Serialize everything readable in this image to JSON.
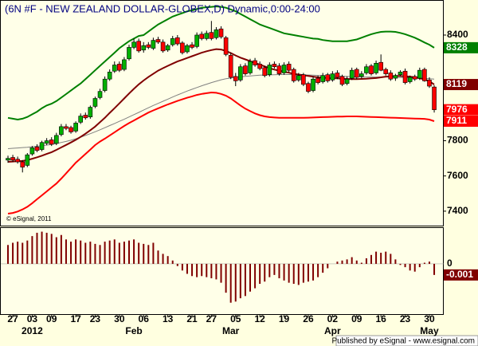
{
  "chart_data": {
    "type": "candlestick",
    "title": "(6N #F - NEW ZEALAND DOLLAR-GLOBEX,D) Dynamic,0:00-24:00",
    "watermark": "© eSignal, 2011",
    "footer": "Published by eSignal - www.esignal.com",
    "categories": [
      null,
      "27",
      null,
      null,
      null,
      "03",
      null,
      null,
      null,
      "09",
      null,
      null,
      null,
      null,
      "17",
      null,
      null,
      null,
      "23",
      null,
      null,
      null,
      null,
      "30",
      null,
      null,
      null,
      null,
      "06",
      null,
      null,
      null,
      null,
      "13",
      null,
      null,
      null,
      null,
      "21",
      null,
      null,
      null,
      "27",
      null,
      null,
      null,
      null,
      "05",
      null,
      null,
      null,
      null,
      "12",
      null,
      null,
      null,
      null,
      "19",
      null,
      null,
      null,
      null,
      "26",
      null,
      null,
      null,
      null,
      "02",
      null,
      null,
      null,
      null,
      "09",
      null,
      null,
      null,
      null,
      "16",
      null,
      null,
      null,
      null,
      "23",
      null,
      null,
      null,
      null,
      "30",
      null
    ],
    "month_labels": [
      null,
      null,
      null,
      null,
      null,
      "2012",
      null,
      null,
      null,
      null,
      null,
      null,
      null,
      null,
      null,
      null,
      null,
      null,
      null,
      null,
      null,
      null,
      null,
      null,
      null,
      null,
      "Feb",
      null,
      null,
      null,
      null,
      null,
      null,
      null,
      null,
      null,
      null,
      null,
      null,
      null,
      null,
      null,
      null,
      null,
      null,
      null,
      "Mar",
      null,
      null,
      null,
      null,
      null,
      null,
      null,
      null,
      null,
      null,
      null,
      null,
      null,
      null,
      null,
      null,
      null,
      null,
      null,
      null,
      "Apr",
      null,
      null,
      null,
      null,
      null,
      null,
      null,
      null,
      null,
      null,
      null,
      null,
      null,
      null,
      null,
      null,
      null,
      null,
      null,
      "May"
    ],
    "candles": {
      "open": [
        7690,
        7705,
        7695,
        7680,
        7660,
        7725,
        7765,
        7750,
        7785,
        7805,
        7785,
        7835,
        7880,
        7875,
        7855,
        7905,
        7945,
        7935,
        7995,
        8045,
        8085,
        8150,
        8195,
        8235,
        8205,
        8265,
        8330,
        8365,
        8315,
        8345,
        8325,
        8375,
        8360,
        8315,
        8345,
        8385,
        8355,
        8305,
        8345,
        8335,
        8405,
        8380,
        8415,
        8385,
        8435,
        8385,
        8285,
        8165,
        8145,
        8225,
        8185,
        8255,
        8235,
        8215,
        8175,
        8235,
        8225,
        8185,
        8235,
        8205,
        8145,
        8175,
        8125,
        8085,
        8155,
        8135,
        8175,
        8145,
        8185,
        8165,
        8125,
        8155,
        8205,
        8165,
        8185,
        8225,
        8185,
        8245,
        8205,
        8185,
        8155,
        8175,
        8195,
        8135,
        8165,
        8155,
        8205,
        8145,
        8105
      ],
      "high": [
        7715,
        7720,
        7710,
        7690,
        7730,
        7770,
        7780,
        7800,
        7815,
        7820,
        7845,
        7895,
        7895,
        7885,
        7910,
        7955,
        7960,
        8000,
        8050,
        8095,
        8165,
        8205,
        8250,
        8250,
        8275,
        8345,
        8380,
        8380,
        8360,
        8360,
        8385,
        8390,
        8375,
        8350,
        8395,
        8400,
        8365,
        8350,
        8360,
        8415,
        8420,
        8425,
        8480,
        8445,
        8450,
        8395,
        8300,
        8185,
        8235,
        8240,
        8265,
        8270,
        8250,
        8225,
        8245,
        8250,
        8240,
        8245,
        8250,
        8215,
        8185,
        8185,
        8135,
        8165,
        8170,
        8185,
        8185,
        8195,
        8200,
        8175,
        8165,
        8215,
        8215,
        8195,
        8235,
        8235,
        8255,
        8290,
        8215,
        8200,
        8180,
        8200,
        8210,
        8170,
        8175,
        8215,
        8215,
        8160,
        8115
      ],
      "low": [
        7675,
        7680,
        7670,
        7620,
        7650,
        7715,
        7735,
        7740,
        7775,
        7770,
        7775,
        7825,
        7860,
        7840,
        7845,
        7895,
        7920,
        7925,
        7985,
        8035,
        8075,
        8140,
        8185,
        8190,
        8195,
        8255,
        8320,
        8300,
        8300,
        8320,
        8315,
        8350,
        8300,
        8305,
        8335,
        8340,
        8290,
        8295,
        8320,
        8325,
        8370,
        8370,
        8370,
        8375,
        8380,
        8280,
        8150,
        8110,
        8135,
        8170,
        8175,
        8220,
        8200,
        8160,
        8165,
        8210,
        8170,
        8175,
        8190,
        8130,
        8135,
        8110,
        8070,
        8075,
        8120,
        8125,
        8130,
        8135,
        8150,
        8110,
        8115,
        8145,
        8150,
        8155,
        8175,
        8170,
        8175,
        8195,
        8170,
        8140,
        8140,
        8165,
        8120,
        8125,
        8140,
        8145,
        8135,
        8100,
        7960
      ],
      "close": [
        7700,
        7690,
        7680,
        7650,
        7720,
        7760,
        7745,
        7790,
        7800,
        7780,
        7830,
        7880,
        7870,
        7850,
        7900,
        7940,
        7930,
        7990,
        8040,
        8080,
        8150,
        8190,
        8230,
        8200,
        8260,
        8330,
        8360,
        8310,
        8340,
        8330,
        8370,
        8360,
        8310,
        8340,
        8380,
        8350,
        8300,
        8340,
        8330,
        8400,
        8380,
        8410,
        8380,
        8430,
        8390,
        8290,
        8160,
        8140,
        8220,
        8180,
        8250,
        8230,
        8210,
        8170,
        8230,
        8220,
        8180,
        8230,
        8200,
        8140,
        8170,
        8120,
        8080,
        8150,
        8130,
        8170,
        8140,
        8180,
        8160,
        8120,
        8150,
        8200,
        8160,
        8180,
        8220,
        8180,
        8240,
        8200,
        8180,
        8150,
        8170,
        8190,
        8130,
        8160,
        8150,
        8200,
        8140,
        8110,
        7976
      ]
    },
    "up_color": "#00b000",
    "down_color": "#ff0000",
    "lines": [
      {
        "color": "#008000",
        "badge": true,
        "values": [
          7930,
          7925,
          7920,
          7925,
          7935,
          7950,
          7965,
          7985,
          8000,
          8010,
          8025,
          8045,
          8065,
          8085,
          8105,
          8125,
          8150,
          8175,
          8200,
          8225,
          8250,
          8275,
          8300,
          8325,
          8345,
          8365,
          8380,
          8395,
          8400,
          8420,
          8440,
          8460,
          8475,
          8490,
          8505,
          8515,
          8525,
          8535,
          8540,
          8548,
          8555,
          8558,
          8560,
          8563,
          8560,
          8555,
          8545,
          8535,
          8520,
          8505,
          8490,
          8475,
          8460,
          8450,
          8440,
          8430,
          8420,
          8410,
          8405,
          8400,
          8395,
          8390,
          8385,
          8380,
          8378,
          8372,
          8368,
          8365,
          8365,
          8365,
          8365,
          8370,
          8375,
          8385,
          8395,
          8405,
          8412,
          8418,
          8420,
          8420,
          8418,
          8412,
          8405,
          8395,
          8385,
          8372,
          8358,
          8345,
          8328
        ]
      },
      {
        "color": "#808080",
        "badge": false,
        "values": [
          7755,
          7757,
          7759,
          7761,
          7763,
          7766,
          7769,
          7772,
          7775,
          7779,
          7784,
          7790,
          7796,
          7803,
          7811,
          7820,
          7830,
          7840,
          7851,
          7862,
          7874,
          7886,
          7898,
          7910,
          7922,
          7935,
          7948,
          7961,
          7974,
          7987,
          8000,
          8012,
          8024,
          8036,
          8048,
          8060,
          8071,
          8082,
          8092,
          8102,
          8112,
          8121,
          8130,
          8138,
          8146,
          8152,
          8156,
          8160,
          8163,
          8166,
          8168,
          8170,
          8172,
          8173,
          8174,
          8175,
          8176,
          8176,
          8176,
          8176,
          8175,
          8174,
          8173,
          8172,
          8171,
          8170,
          8169,
          8168,
          8167,
          8166,
          8165,
          8164,
          8163,
          8162,
          8162,
          8162,
          8162,
          8162,
          8162,
          8161,
          8160,
          8159,
          8158,
          8157,
          8156,
          8155,
          8154,
          8152,
          8150
        ]
      },
      {
        "color": "#800000",
        "badge": true,
        "values": [
          7680,
          7682,
          7684,
          7685,
          7690,
          7698,
          7706,
          7715,
          7725,
          7735,
          7748,
          7762,
          7776,
          7790,
          7805,
          7822,
          7840,
          7860,
          7880,
          7905,
          7930,
          7958,
          7985,
          8012,
          8040,
          8068,
          8095,
          8120,
          8142,
          8162,
          8180,
          8198,
          8212,
          8225,
          8238,
          8250,
          8260,
          8270,
          8280,
          8290,
          8300,
          8308,
          8315,
          8320,
          8318,
          8310,
          8298,
          8284,
          8272,
          8262,
          8252,
          8242,
          8232,
          8222,
          8212,
          8204,
          8198,
          8192,
          8186,
          8180,
          8176,
          8172,
          8168,
          8164,
          8160,
          8158,
          8156,
          8155,
          8154,
          8152,
          8151,
          8150,
          8150,
          8151,
          8152,
          8154,
          8156,
          8160,
          8164,
          8166,
          8168,
          8168,
          8166,
          8164,
          8160,
          8155,
          8148,
          8138,
          8119
        ]
      },
      {
        "color": "#ff0000",
        "badge": true,
        "values": [
          7386,
          7390,
          7398,
          7410,
          7425,
          7445,
          7468,
          7490,
          7512,
          7535,
          7557,
          7585,
          7615,
          7645,
          7675,
          7700,
          7725,
          7750,
          7775,
          7795,
          7812,
          7830,
          7848,
          7866,
          7884,
          7900,
          7915,
          7930,
          7945,
          7960,
          7972,
          7984,
          7995,
          8006,
          8016,
          8026,
          8035,
          8044,
          8052,
          8060,
          8066,
          8070,
          8074,
          8072,
          8066,
          8056,
          8040,
          8020,
          8000,
          7982,
          7968,
          7955,
          7945,
          7938,
          7934,
          7932,
          7930,
          7930,
          7930,
          7930,
          7930,
          7930,
          7931,
          7932,
          7933,
          7934,
          7935,
          7936,
          7937,
          7937,
          7938,
          7938,
          7938,
          7937,
          7936,
          7935,
          7934,
          7933,
          7932,
          7931,
          7930,
          7929,
          7928,
          7927,
          7926,
          7925,
          7924,
          7920,
          7911
        ]
      }
    ],
    "ylim": [
      7318,
      8590
    ],
    "yticks": [
      7400,
      7600,
      7800,
      8400
    ],
    "oscillator": {
      "type": "bar",
      "color": "#800000",
      "values": [
        0.0017,
        0.0019,
        0.002,
        0.0019,
        0.0021,
        0.0025,
        0.0028,
        0.0029,
        0.0028,
        0.0027,
        0.0024,
        0.0026,
        0.0022,
        0.002,
        0.0022,
        0.0021,
        0.0019,
        0.002,
        0.0018,
        0.0017,
        0.002,
        0.0021,
        0.0022,
        0.0019,
        0.002,
        0.0021,
        0.0022,
        0.0019,
        0.0018,
        0.0017,
        0.0019,
        0.0012,
        0.0009,
        0.0007,
        0.0003,
        -0.0002,
        -0.0006,
        -0.0009,
        -0.0011,
        -0.0012,
        -0.0011,
        -0.0012,
        -0.0013,
        -0.0014,
        -0.0017,
        -0.0026,
        -0.0035,
        -0.0034,
        -0.0031,
        -0.0029,
        -0.0025,
        -0.0022,
        -0.0018,
        -0.0016,
        -0.0012,
        -0.001,
        -0.0013,
        -0.0015,
        -0.0017,
        -0.0018,
        -0.0019,
        -0.0017,
        -0.0016,
        -0.0015,
        -0.0012,
        -0.0008,
        -0.0004,
        0,
        0.0002,
        0.0003,
        0.0004,
        0.0006,
        0.0003,
        0.0001,
        0.0005,
        0.0008,
        0.0011,
        0.001,
        0.0011,
        0.0009,
        0.0004,
        -0.0001,
        -0.0003,
        -0.0006,
        -0.0007,
        -0.0003,
        0.0001,
        0.0002,
        -0.001
      ],
      "ylim": [
        -0.0046,
        0.0033
      ],
      "yticks": [
        0
      ]
    }
  }
}
